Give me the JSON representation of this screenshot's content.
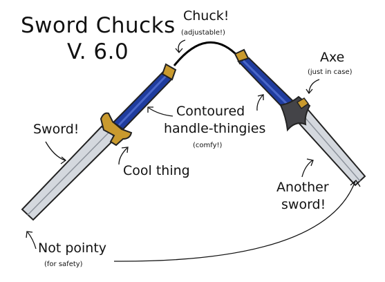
{
  "title": "Sword Chucks",
  "version": "V. 6.0",
  "labels": {
    "chuck": "Chuck!",
    "chuck_note": "(adjustable!)",
    "axe": "Axe",
    "axe_note": "(just in case)",
    "contoured_line1": "Contoured",
    "contoured_line2": "handle-thingies",
    "contoured_note": "(comfy!)",
    "sword": "Sword!",
    "cool_thing": "Cool thing",
    "another_line1": "Another",
    "another_line2": "sword!",
    "not_pointy": "Not pointy",
    "not_pointy_note": "(for safety)"
  },
  "colors": {
    "handle": "#1f3c9e",
    "handle_highlight": "#4a67c9",
    "gold": "#c99a2e",
    "blade": "#d4d8de",
    "blade_edge": "#8c929b",
    "axe_head": "#444448",
    "chain": "#000000"
  }
}
